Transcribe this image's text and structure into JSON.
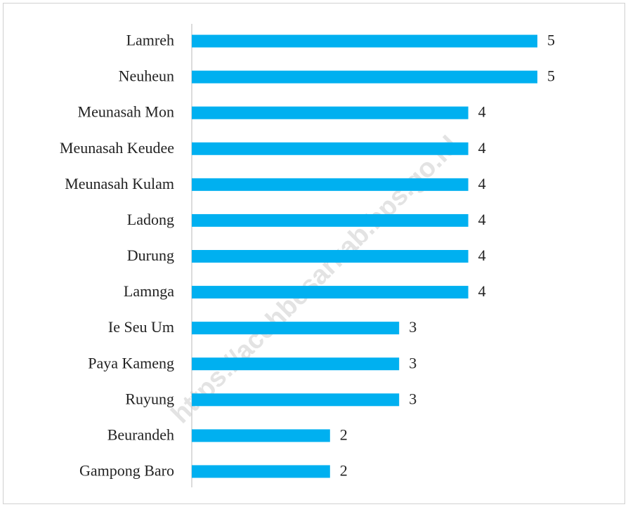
{
  "chart_data": {
    "type": "hbar",
    "categories": [
      "Lamreh",
      "Neuheun",
      "Meunasah Mon",
      "Meunasah Keudee",
      "Meunasah Kulam",
      "Ladong",
      "Durung",
      "Lamnga",
      "Ie Seu Um",
      "Paya Kameng",
      "Ruyung",
      "Beurandeh",
      "Gampong Baro"
    ],
    "values": [
      5,
      5,
      4,
      4,
      4,
      4,
      4,
      4,
      3,
      3,
      3,
      2,
      2
    ],
    "color": "#00b0f0",
    "xlim": [
      0,
      5
    ],
    "watermark": "https://acehbesarkab.bps.go.id"
  }
}
